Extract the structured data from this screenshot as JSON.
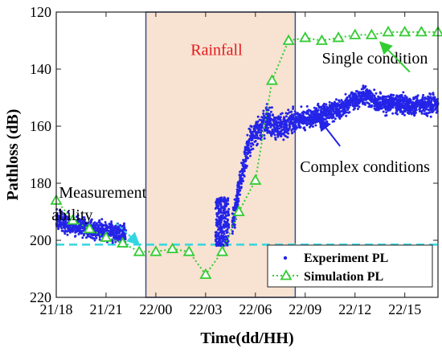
{
  "chart_data": {
    "type": "scatter",
    "xlabel": "Time(dd/HH)",
    "ylabel": "Pathloss (dB)",
    "x_ticks": [
      "21/18",
      "21/21",
      "22/00",
      "22/03",
      "22/06",
      "22/09",
      "22/12",
      "22/15"
    ],
    "x_tick_hours": [
      0,
      3,
      6,
      9,
      12,
      15,
      18,
      21
    ],
    "xlim": [
      0,
      23
    ],
    "ylim": [
      120,
      220
    ],
    "y_ticks": [
      120,
      140,
      160,
      180,
      200,
      220
    ],
    "y_reversed": true,
    "grid": false,
    "legend_position": "bottom-right",
    "rainfall_region": {
      "label": "Rainfall",
      "start": 5.4,
      "end": 14.4,
      "color": "#f8e2d2"
    },
    "threshold_line": {
      "y": 201.5,
      "color": "#33d6e0",
      "style": "dashed"
    },
    "annotations": [
      {
        "text": "Single condition",
        "x": 19.2,
        "y": 138
      },
      {
        "text": "Complex conditions",
        "x": 18.6,
        "y": 176
      },
      {
        "text": "Measurement",
        "x": 2.8,
        "y": 185
      },
      {
        "text": "ability",
        "x": 2.8,
        "y": 193
      }
    ],
    "series": [
      {
        "name": "Experiment PL",
        "kind": "scatter",
        "color": "#2424e8",
        "segments": [
          {
            "x": [
              0,
              1,
              2,
              3,
              4.2
            ],
            "y": [
              193,
              195,
              196,
              197,
              198
            ]
          },
          {
            "x": [
              10.6,
              11.0,
              11.5,
              11.9,
              12.3,
              12.7,
              13.2,
              13.7,
              14.4
            ],
            "y": [
              195,
              182,
              168,
              163,
              161,
              158,
              160,
              160,
              158
            ]
          },
          {
            "x": [
              14.4,
              15.5,
              16.5,
              17.5,
              18.5,
              19.5,
              20.5,
              21.5,
              23
            ],
            "y": [
              158,
              157,
              155,
              153,
              149,
              152,
              152,
              153,
              152
            ]
          }
        ],
        "clusters": [
          {
            "x": [
              9.6,
              10.4
            ],
            "y": [
              185,
              202
            ]
          }
        ]
      },
      {
        "name": "Simulation PL",
        "kind": "line-marker",
        "color": "#33cc33",
        "x": [
          0,
          1,
          2,
          3,
          4,
          5,
          6,
          7,
          8,
          9,
          10,
          11,
          12,
          13,
          14,
          15,
          16,
          17,
          18,
          19,
          20,
          21,
          22,
          23
        ],
        "y": [
          186,
          193,
          196,
          199,
          201,
          204,
          204,
          203,
          204,
          212,
          204,
          190,
          179,
          144,
          130,
          129,
          130,
          129,
          128,
          128,
          127,
          127,
          127,
          127
        ]
      }
    ]
  }
}
